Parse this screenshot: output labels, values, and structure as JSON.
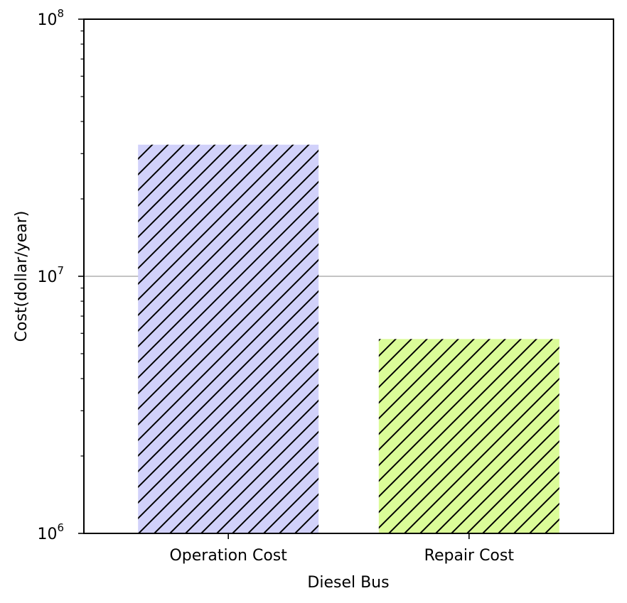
{
  "chart_data": {
    "type": "bar",
    "title": "",
    "xlabel": "Diesel Bus",
    "ylabel": "Cost(dollar/year)",
    "y_scale": "log",
    "ylim": [
      1000000,
      100000000
    ],
    "y_ticks": [
      {
        "value": 1000000,
        "base": "10",
        "exp": "6"
      },
      {
        "value": 10000000,
        "base": "10",
        "exp": "7"
      },
      {
        "value": 100000000,
        "base": "10",
        "exp": "8"
      }
    ],
    "categories": [
      "Operation Cost",
      "Repair Cost"
    ],
    "values": [
      32500000,
      5700000
    ],
    "colors": [
      "#d1d1fa",
      "#dbfc98"
    ],
    "hatch": "diagonal",
    "hatch_color": "#000000",
    "grid": "horizontal line at 10^7",
    "legend": "none"
  }
}
